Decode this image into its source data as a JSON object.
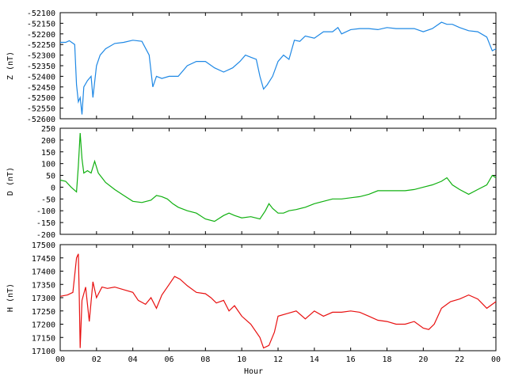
{
  "chart_data": [
    {
      "type": "line",
      "ylabel": "Z (nT)",
      "color": "#1e88e5",
      "ylim": [
        -52600,
        -52100
      ],
      "yticks": [
        -52600,
        -52550,
        -52500,
        -52450,
        -52400,
        -52350,
        -52300,
        -52250,
        -52200,
        -52150,
        -52100
      ],
      "xlim": [
        0,
        24
      ],
      "series": [
        {
          "x": [
            0,
            0.3,
            0.5,
            0.8,
            0.9,
            1.0,
            1.1,
            1.2,
            1.3,
            1.5,
            1.7,
            1.8,
            2.0,
            2.2,
            2.5,
            3.0,
            3.5,
            4.0,
            4.5,
            4.9,
            5.1,
            5.3,
            5.6,
            6.0,
            6.5,
            7.0,
            7.5,
            8.0,
            8.5,
            9.0,
            9.5,
            9.9,
            10.2,
            10.5,
            10.8,
            11.0,
            11.2,
            11.4,
            11.7,
            12.0,
            12.3,
            12.6,
            12.9,
            13.2,
            13.5,
            14.0,
            14.5,
            15.0,
            15.3,
            15.5,
            16.0,
            16.5,
            17.0,
            17.5,
            18.0,
            18.5,
            19.0,
            19.5,
            20.0,
            20.5,
            21.0,
            21.3,
            21.6,
            22.0,
            22.5,
            23.0,
            23.5,
            23.8,
            24.0
          ],
          "y": [
            -52240,
            -52240,
            -52232,
            -52250,
            -52440,
            -52520,
            -52500,
            -52580,
            -52450,
            -52420,
            -52400,
            -52500,
            -52350,
            -52300,
            -52270,
            -52245,
            -52240,
            -52230,
            -52235,
            -52300,
            -52450,
            -52400,
            -52410,
            -52400,
            -52400,
            -52350,
            -52330,
            -52330,
            -52360,
            -52380,
            -52360,
            -52330,
            -52300,
            -52310,
            -52320,
            -52400,
            -52460,
            -52440,
            -52400,
            -52330,
            -52300,
            -52320,
            -52230,
            -52235,
            -52210,
            -52220,
            -52190,
            -52190,
            -52170,
            -52200,
            -52180,
            -52175,
            -52175,
            -52180,
            -52170,
            -52175,
            -52175,
            -52175,
            -52190,
            -52175,
            -52145,
            -52155,
            -52155,
            -52170,
            -52185,
            -52190,
            -52215,
            -52280,
            -52270
          ]
        }
      ]
    },
    {
      "type": "line",
      "ylabel": "D (nT)",
      "color": "#10b010",
      "ylim": [
        -200,
        250
      ],
      "yticks": [
        -200,
        -150,
        -100,
        -50,
        0,
        50,
        100,
        150,
        200,
        250
      ],
      "xlim": [
        0,
        24
      ],
      "series": [
        {
          "x": [
            0,
            0.3,
            0.6,
            0.9,
            1.0,
            1.1,
            1.2,
            1.3,
            1.5,
            1.7,
            1.9,
            2.1,
            2.3,
            2.5,
            3.0,
            3.5,
            4.0,
            4.5,
            5.0,
            5.3,
            5.6,
            5.9,
            6.2,
            6.5,
            7.0,
            7.5,
            8.0,
            8.5,
            9.0,
            9.3,
            9.6,
            10.0,
            10.5,
            11.0,
            11.3,
            11.5,
            11.7,
            12.0,
            12.3,
            12.6,
            13.0,
            13.5,
            14.0,
            14.5,
            15.0,
            15.5,
            16.0,
            16.5,
            17.0,
            17.5,
            18.0,
            18.5,
            19.0,
            19.5,
            20.0,
            20.5,
            21.0,
            21.3,
            21.6,
            22.0,
            22.5,
            23.0,
            23.5,
            23.8,
            24.0
          ],
          "y": [
            30,
            25,
            0,
            -20,
            90,
            230,
            120,
            60,
            70,
            60,
            110,
            60,
            40,
            20,
            -10,
            -35,
            -60,
            -65,
            -55,
            -35,
            -40,
            -50,
            -70,
            -85,
            -100,
            -110,
            -135,
            -145,
            -120,
            -110,
            -120,
            -130,
            -125,
            -135,
            -100,
            -70,
            -90,
            -110,
            -110,
            -100,
            -95,
            -85,
            -70,
            -60,
            -50,
            -50,
            -45,
            -40,
            -30,
            -15,
            -15,
            -15,
            -15,
            -10,
            0,
            10,
            25,
            40,
            10,
            -10,
            -30,
            -10,
            10,
            50,
            40
          ]
        }
      ]
    },
    {
      "type": "line",
      "ylabel": "H (nT)",
      "color": "#e81010",
      "xlabel": "Hour",
      "ylim": [
        17100,
        17500
      ],
      "yticks": [
        17100,
        17150,
        17200,
        17250,
        17300,
        17350,
        17400,
        17450,
        17500
      ],
      "xlim": [
        0,
        24
      ],
      "xticklabels": [
        "00",
        "02",
        "04",
        "06",
        "08",
        "10",
        "12",
        "14",
        "16",
        "18",
        "20",
        "22",
        "00"
      ],
      "series": [
        {
          "x": [
            0,
            0.4,
            0.7,
            0.9,
            1.0,
            1.05,
            1.1,
            1.2,
            1.4,
            1.6,
            1.8,
            2.0,
            2.3,
            2.6,
            3.0,
            3.5,
            4.0,
            4.3,
            4.7,
            5.0,
            5.3,
            5.6,
            6.0,
            6.3,
            6.6,
            7.0,
            7.5,
            8.0,
            8.3,
            8.6,
            9.0,
            9.3,
            9.6,
            10.0,
            10.5,
            11.0,
            11.2,
            11.5,
            11.8,
            12.0,
            12.5,
            13.0,
            13.5,
            14.0,
            14.5,
            15.0,
            15.5,
            16.0,
            16.5,
            17.0,
            17.5,
            18.0,
            18.5,
            19.0,
            19.5,
            20.0,
            20.3,
            20.6,
            21.0,
            21.5,
            22.0,
            22.5,
            23.0,
            23.5,
            24.0
          ],
          "y": [
            17305,
            17310,
            17320,
            17450,
            17465,
            17300,
            17110,
            17290,
            17340,
            17210,
            17360,
            17300,
            17340,
            17335,
            17340,
            17330,
            17320,
            17290,
            17275,
            17300,
            17260,
            17310,
            17350,
            17380,
            17370,
            17345,
            17320,
            17315,
            17300,
            17280,
            17290,
            17250,
            17270,
            17230,
            17200,
            17150,
            17110,
            17120,
            17170,
            17230,
            17240,
            17250,
            17220,
            17250,
            17230,
            17245,
            17245,
            17250,
            17245,
            17230,
            17215,
            17210,
            17200,
            17200,
            17210,
            17185,
            17180,
            17200,
            17260,
            17285,
            17295,
            17310,
            17295,
            17260,
            17285
          ]
        }
      ]
    }
  ]
}
